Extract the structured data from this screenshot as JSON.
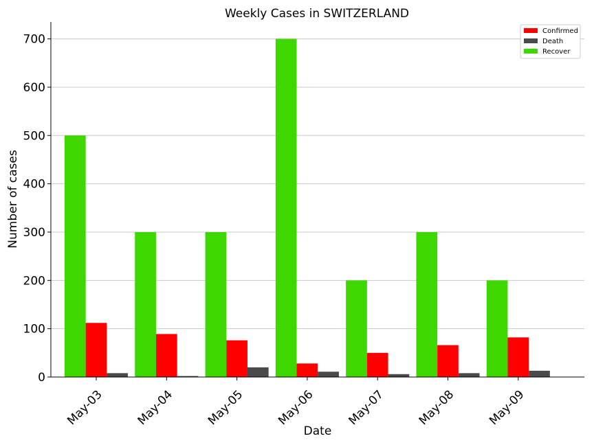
{
  "chart_data": {
    "type": "bar",
    "title": "Weekly Cases in SWITZERLAND",
    "xlabel": "Date",
    "ylabel": "Number of cases",
    "categories": [
      "May-03",
      "May-04",
      "May-05",
      "May-06",
      "May-07",
      "May-08",
      "May-09"
    ],
    "series": [
      {
        "name": "Recover",
        "color": "#3ed700",
        "values": [
          500,
          300,
          300,
          700,
          200,
          300,
          200
        ]
      },
      {
        "name": "Confirmed",
        "color": "#ff0000",
        "values": [
          112,
          89,
          76,
          28,
          50,
          66,
          82
        ]
      },
      {
        "name": "Death",
        "color": "#4a4a4a",
        "values": [
          8,
          2,
          20,
          11,
          6,
          8,
          13
        ]
      }
    ],
    "legend_order": [
      "Confirmed",
      "Death",
      "Recover"
    ],
    "ylim": [
      0,
      735
    ],
    "yticks": [
      0,
      100,
      200,
      300,
      400,
      500,
      600,
      700
    ],
    "grid": "horizontal",
    "legend_position": "top-right"
  }
}
